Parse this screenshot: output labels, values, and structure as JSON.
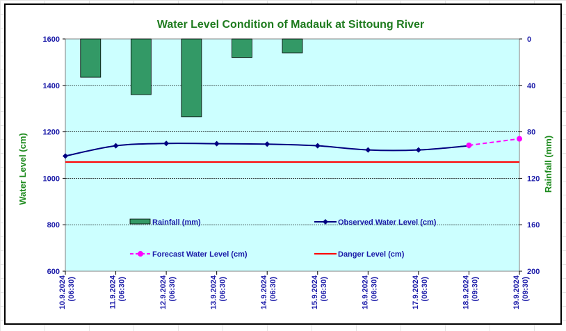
{
  "chart_data": {
    "type": "combo",
    "title": "Water Level Condition of Madauk at Sittoung River",
    "ylabel_left": "Water Level (cm)",
    "ylabel_right": "Rainfall (mm)",
    "ylim_left": [
      600,
      1600
    ],
    "yticks_left": [
      "1600",
      "1400",
      "1200",
      "1000",
      "800",
      "600"
    ],
    "ylim_right_inverted": [
      0,
      200
    ],
    "yticks_right": [
      "0",
      "40",
      "80",
      "120",
      "160",
      "200"
    ],
    "categories": [
      [
        "10.9.2024",
        "(06:30)"
      ],
      [
        "11.9.2024",
        "(06:30)"
      ],
      [
        "12.9.2024",
        "(06:30)"
      ],
      [
        "13.9.2024",
        "(06:30)"
      ],
      [
        "14.9.2024",
        "(06:30)"
      ],
      [
        "15.9.2024",
        "(06:30)"
      ],
      [
        "16.9.2024",
        "(06:30)"
      ],
      [
        "17.9.2024",
        "(06:30)"
      ],
      [
        "18.9.2024",
        "(09:30)"
      ],
      [
        "19.9.2024",
        "(09:30)"
      ]
    ],
    "rainfall": [
      33,
      48,
      67,
      16,
      12,
      null,
      null,
      null,
      null,
      null
    ],
    "observed": [
      1096,
      1140,
      1150,
      1149,
      1147,
      1140,
      1122,
      1122,
      1140,
      null
    ],
    "forecast": [
      null,
      null,
      null,
      null,
      null,
      null,
      null,
      null,
      1142,
      1170
    ],
    "danger_level": 1070,
    "grid": true,
    "legend": [
      {
        "label": "Rainfall (mm)",
        "symbol": "bar"
      },
      {
        "label": "Observed Water Level (cm)",
        "symbol": "line-diamond"
      },
      {
        "label": "Forecast Water Level (cm)",
        "symbol": "dashed-circle"
      },
      {
        "label": "Danger Level (cm)",
        "symbol": "line"
      }
    ],
    "colors": {
      "plot_bg": "#ccffff",
      "rainfall": "#339966",
      "observed": "#000080",
      "forecast": "#ff00ff",
      "danger": "#ff0000",
      "title": "#1e7b1e",
      "ticks": "#1a1aa8",
      "axis_title": "#1e8b1e"
    }
  }
}
